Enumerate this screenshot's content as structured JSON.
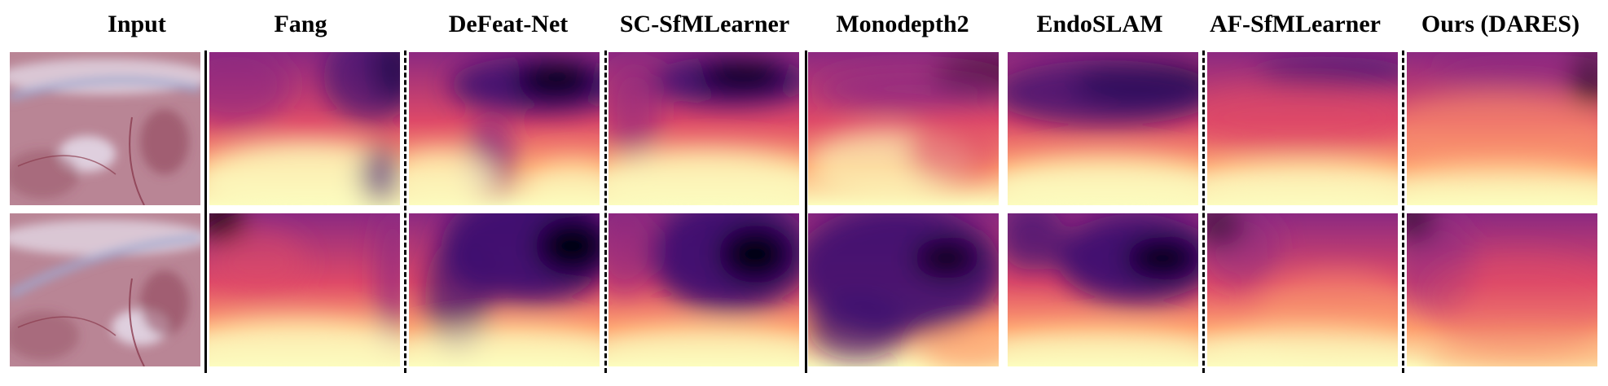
{
  "figure": {
    "columns": [
      {
        "key": "input",
        "label": "Input"
      },
      {
        "key": "fang",
        "label": "Fang"
      },
      {
        "key": "defeat",
        "label": "DeFeat-Net"
      },
      {
        "key": "scsfm",
        "label": "SC-SfMLearner"
      },
      {
        "key": "md2",
        "label": "Monodepth2"
      },
      {
        "key": "endoslam",
        "label": "EndoSLAM"
      },
      {
        "key": "afsfm",
        "label": "AF-SfMLearner"
      },
      {
        "key": "ours",
        "label": "Ours (DARES)"
      }
    ],
    "colormap": {
      "far": "#000004",
      "deep": "#3b0f70",
      "mid": "#8c2981",
      "warm": "#de4968",
      "light": "#fe9f6d",
      "near": "#fcfdbf"
    },
    "input_colors": {
      "tissue": "#b98595",
      "highlight": "#e8e2f0",
      "vessel": "#8a3a4d",
      "fold": "#a0a8d0"
    }
  }
}
